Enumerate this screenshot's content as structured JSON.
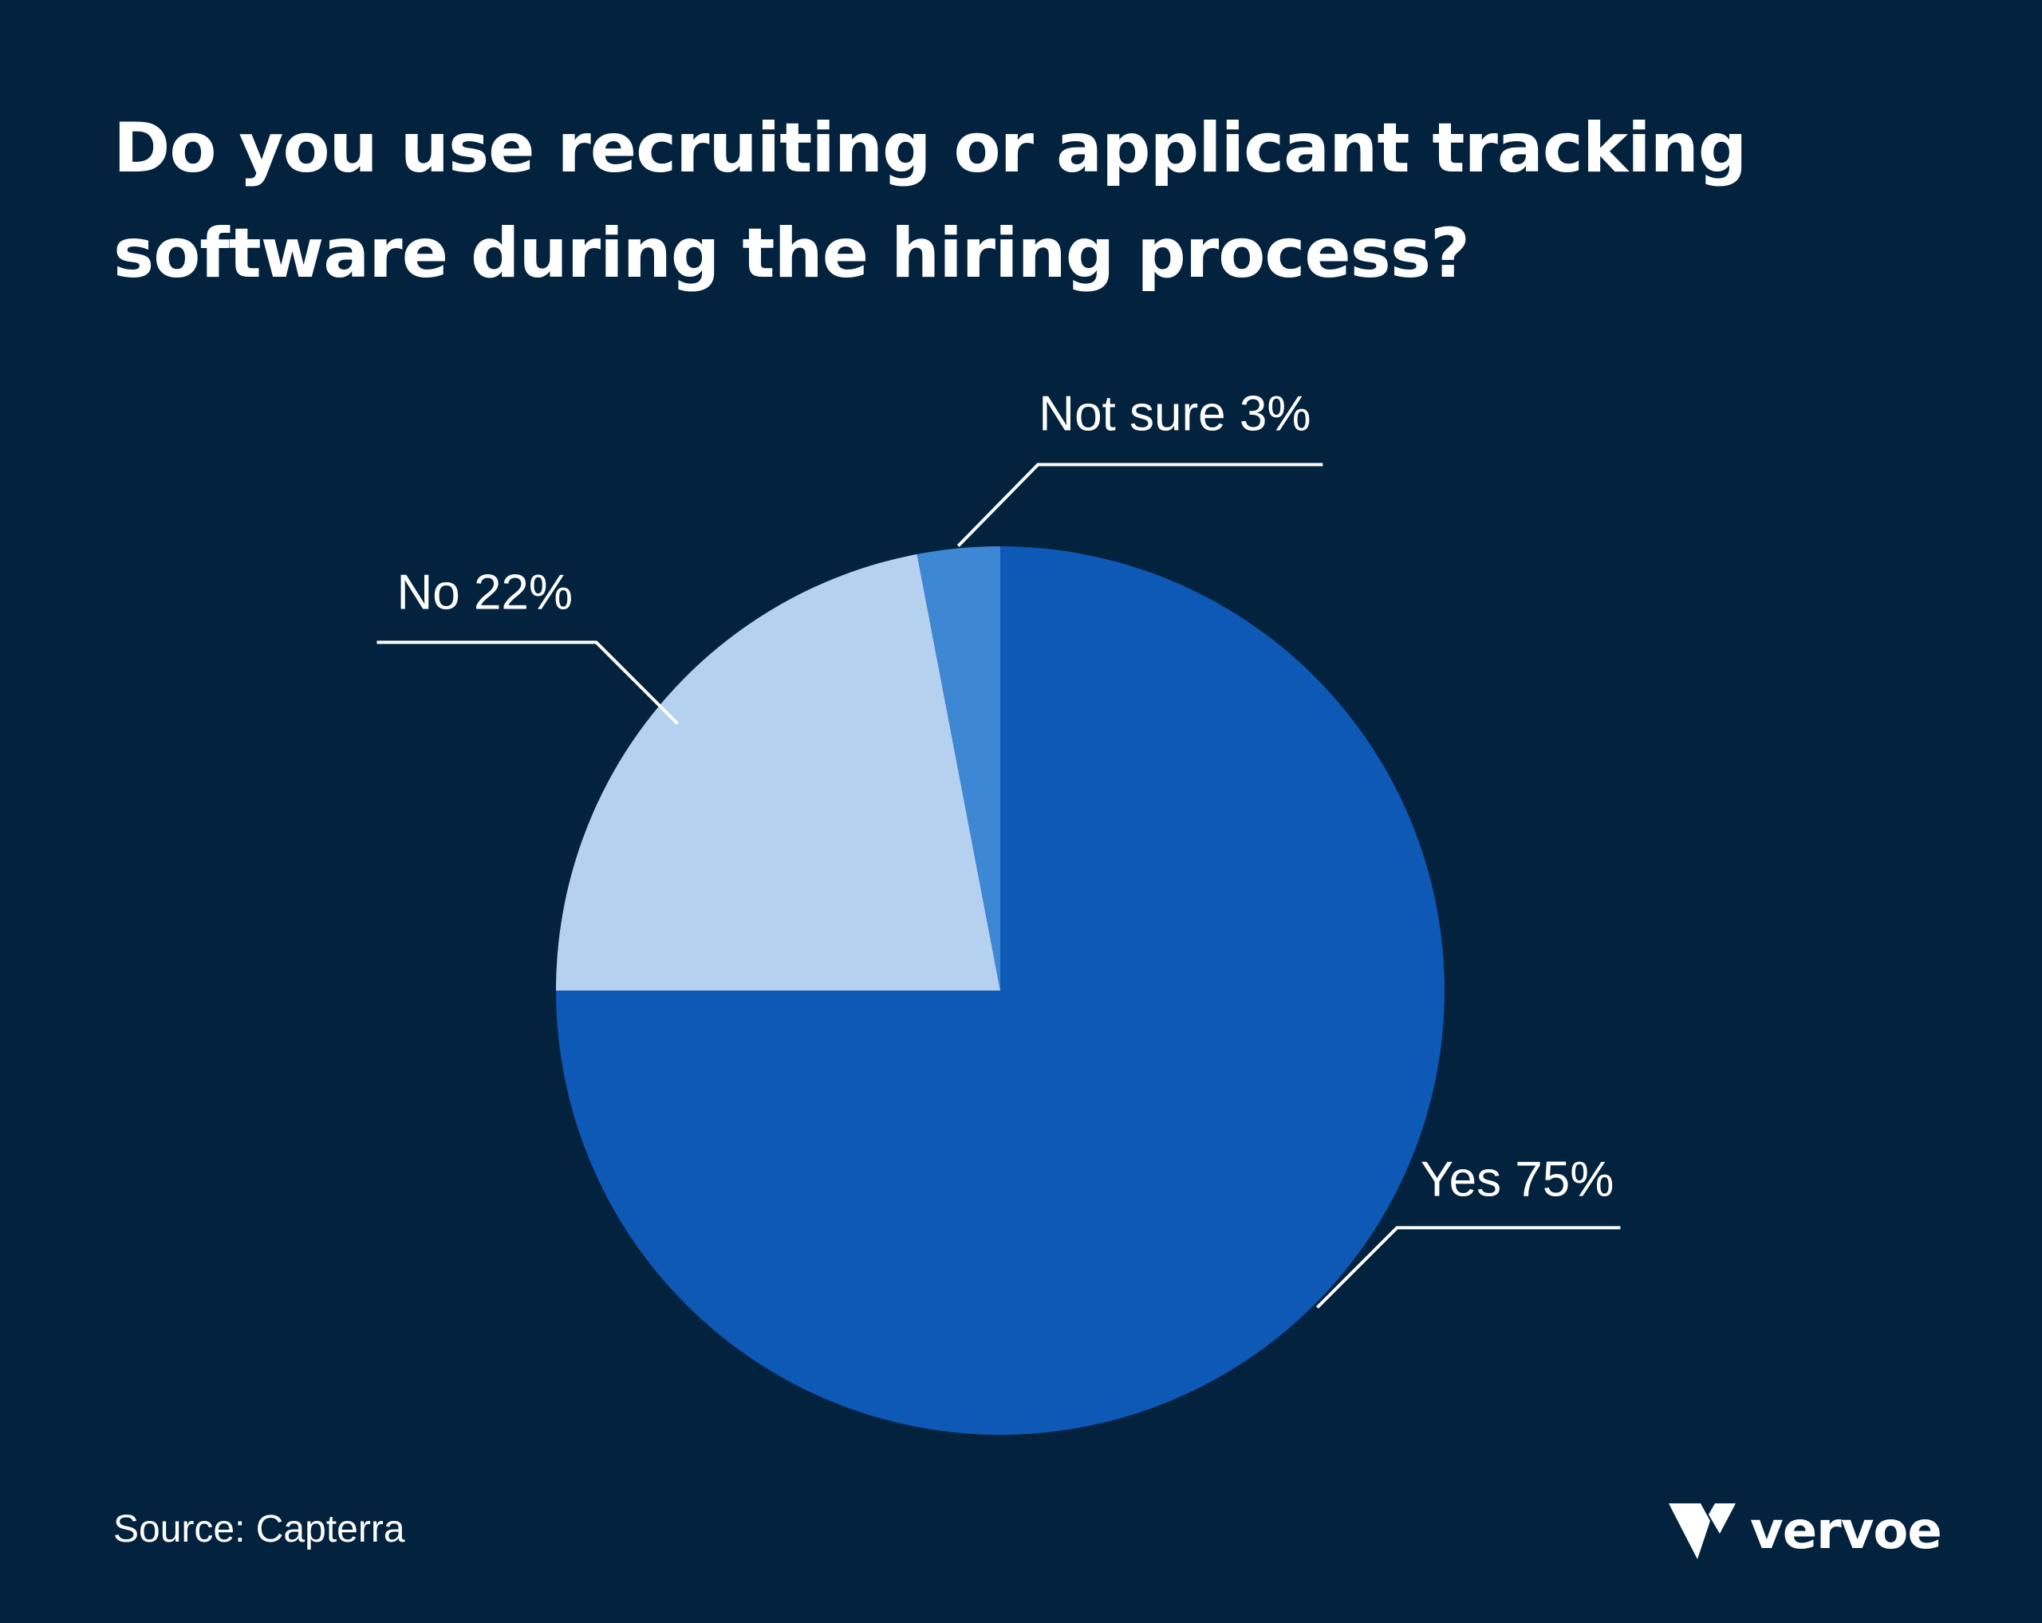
{
  "header": {
    "title_line1": "Do you use recruiting or applicant tracking",
    "title_line2": "software during the hiring process?"
  },
  "chart_data": {
    "type": "pie",
    "title": "Do you use recruiting or applicant tracking software during the hiring process?",
    "categories": [
      "Yes",
      "No",
      "Not sure"
    ],
    "values": [
      75,
      22,
      3
    ],
    "unit": "%",
    "labels": [
      "Yes 75%",
      "No 22%",
      "Not sure 3%"
    ],
    "colors": [
      "#0e58b6",
      "#b6d1f0",
      "#3d87d5"
    ],
    "start_angle": "12 o'clock",
    "direction": "clockwise",
    "legend": "none (direct labels with leader lines)"
  },
  "footer": {
    "source": "Source: Capterra",
    "brand": "vervoe",
    "brand_icon": "vervoe-v-logo-icon"
  },
  "theme": {
    "background": "#03223d",
    "text": "#ffffff"
  }
}
